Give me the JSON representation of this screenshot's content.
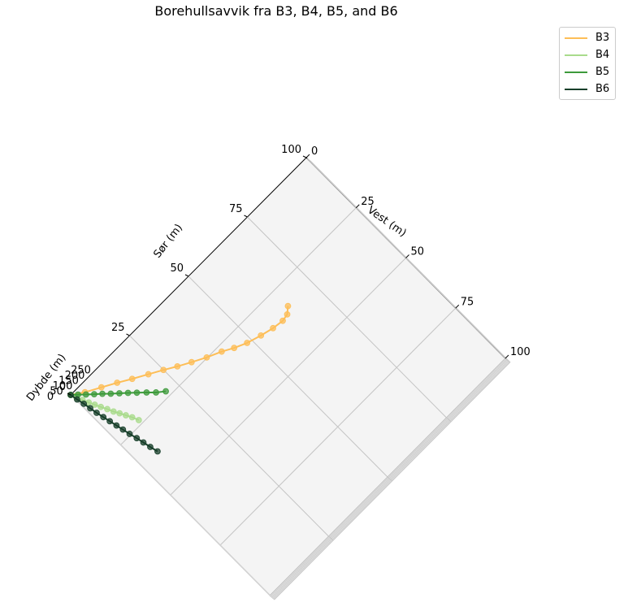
{
  "chart_data": {
    "type": "line3d",
    "title": "Borehullsavvik fra B3, B4, B5, and B6",
    "xlabel": "Vest (m)",
    "ylabel": "Sør (m)",
    "zlabel": "Dybde (m)",
    "xlim": [
      0,
      100
    ],
    "ylim": [
      0,
      100
    ],
    "zlim": [
      0,
      250
    ],
    "x_ticks": [
      "0",
      "25",
      "50",
      "75",
      "100"
    ],
    "y_ticks": [
      "0",
      "25",
      "50",
      "75",
      "100"
    ],
    "z_ticks": [
      "0",
      "50",
      "100",
      "150",
      "200",
      "250"
    ],
    "grid": true,
    "legend_position": "top-right",
    "series": [
      {
        "name": "B3",
        "color": "#fdbe57",
        "x": [
          0,
          3.6,
          8.1,
          12.4,
          16.4,
          20.8,
          24.9,
          28.6,
          32.5,
          36.7,
          41.1,
          44.5,
          48.3,
          52.8,
          56.9,
          60.5,
          62.8,
          64.7
        ],
        "y": [
          0,
          2.8,
          5.6,
          8.3,
          11.0,
          13.8,
          16.4,
          18.9,
          21.3,
          23.8,
          26.0,
          28.1,
          30.0,
          31.5,
          32.6,
          33.1,
          32.5,
          30.5
        ],
        "z": [
          0,
          13,
          26,
          39,
          52,
          65,
          78,
          91,
          104,
          117,
          130,
          143,
          156,
          169,
          182,
          195,
          208,
          221
        ]
      },
      {
        "name": "B4",
        "color": "#a9db8c",
        "x": [
          0,
          0.6,
          1.4,
          2.2,
          3.0,
          3.8,
          4.7,
          5.5,
          6.4,
          7.3,
          8.2,
          9.0
        ],
        "y": [
          0,
          2.0,
          3.9,
          5.9,
          7.8,
          9.7,
          11.7,
          13.7,
          15.5,
          17.4,
          19.3,
          21.5
        ],
        "z": [
          0,
          20,
          40,
          60,
          80,
          100,
          120,
          140,
          160,
          180,
          200,
          220
        ]
      },
      {
        "name": "B5",
        "color": "#3d9a3b",
        "x": [
          0,
          1.6,
          3.3,
          5.1,
          6.9,
          8.7,
          10.6,
          12.5,
          14.4,
          16.5,
          18.5,
          20.8
        ],
        "y": [
          0,
          1.6,
          3.4,
          5.2,
          7.0,
          8.9,
          10.8,
          12.7,
          14.7,
          16.9,
          19.1,
          21.1
        ],
        "z": [
          0,
          20,
          40,
          60,
          80,
          100,
          120,
          140,
          160,
          180,
          200,
          220
        ]
      },
      {
        "name": "B6",
        "color": "#173f2a",
        "x": [
          0,
          0.4,
          0.9,
          1.3,
          1.7,
          2.2,
          2.7,
          3.2,
          3.7,
          4.2,
          4.8,
          5.3,
          5.8,
          6.4
        ],
        "y": [
          0,
          2.6,
          5.2,
          7.8,
          10.4,
          13.0,
          15.5,
          18.1,
          20.6,
          23.2,
          25.9,
          28.5,
          31.2,
          34.0
        ],
        "z": [
          0,
          17,
          34,
          51,
          68,
          85,
          102,
          119,
          136,
          153,
          170,
          187,
          204,
          221
        ]
      }
    ]
  }
}
